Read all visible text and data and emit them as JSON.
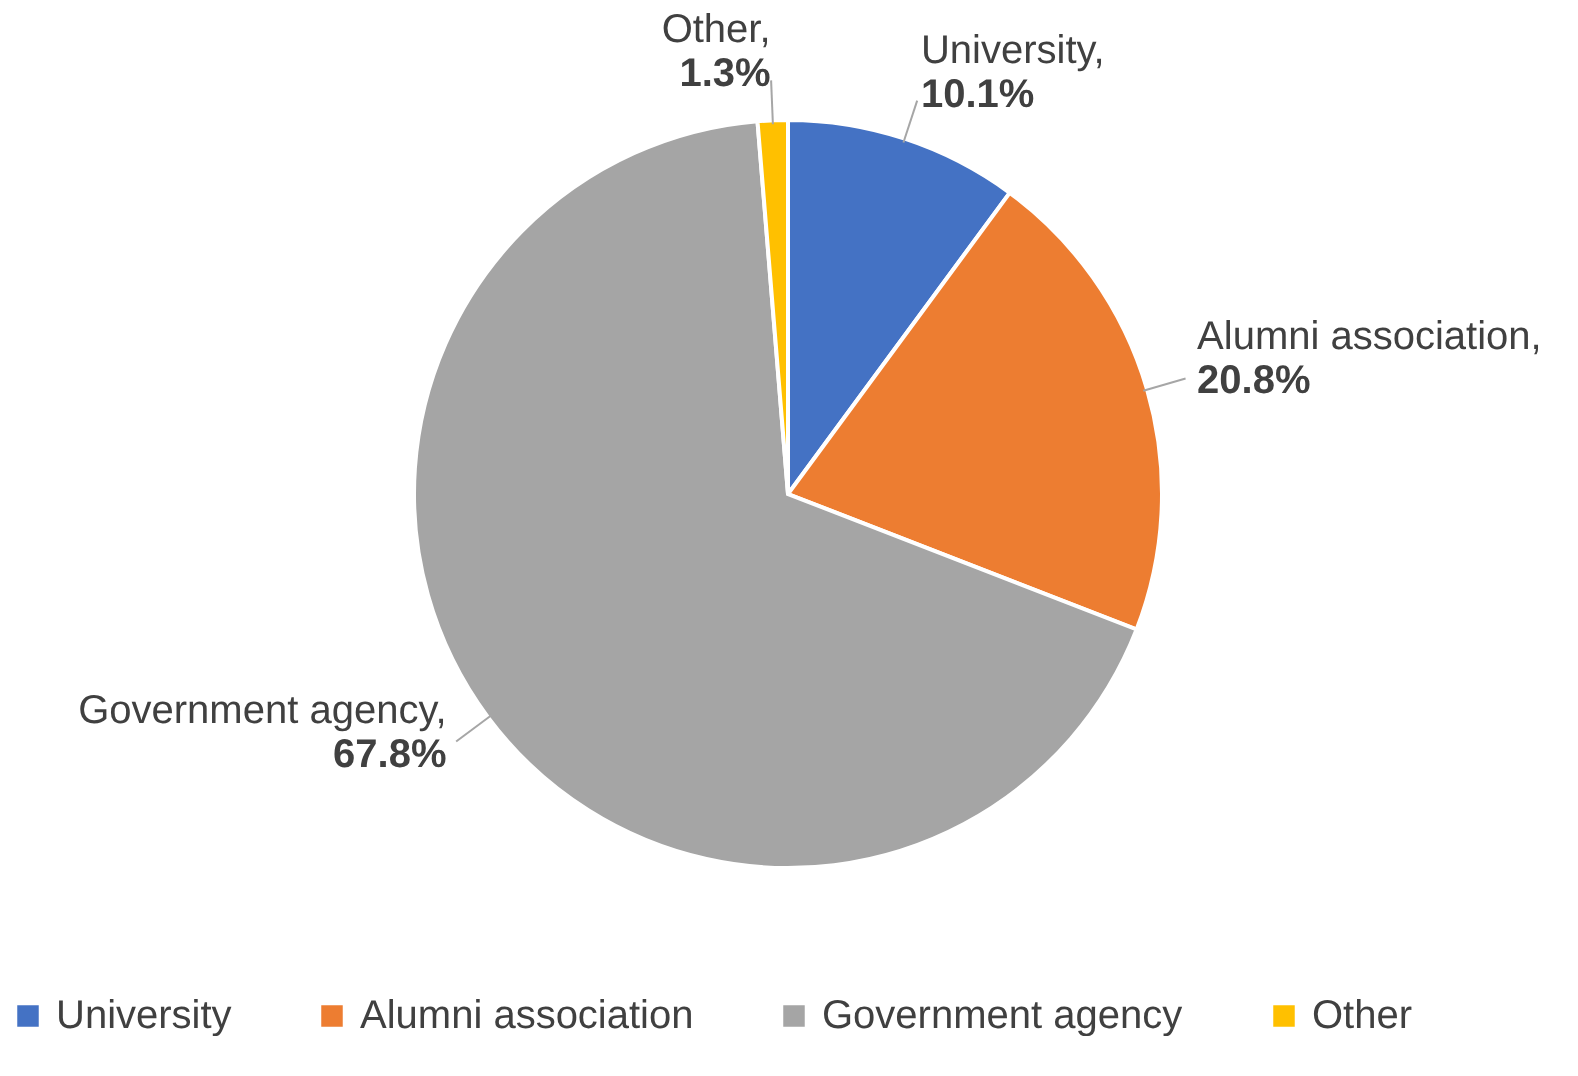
{
  "chart_data": {
    "type": "pie",
    "categories": [
      "University",
      "Alumni association",
      "Government agency",
      "Other"
    ],
    "values": [
      10.1,
      20.8,
      67.8,
      1.3
    ],
    "value_labels": [
      "10.1%",
      "20.8%",
      "67.8%",
      "1.3%"
    ],
    "colors": [
      "#4472c4",
      "#ed7d31",
      "#a5a5a5",
      "#ffc000"
    ],
    "annotations": [
      "University,",
      "Alumni association,",
      "Government agency,",
      "Other,"
    ],
    "legend": "bottom"
  }
}
